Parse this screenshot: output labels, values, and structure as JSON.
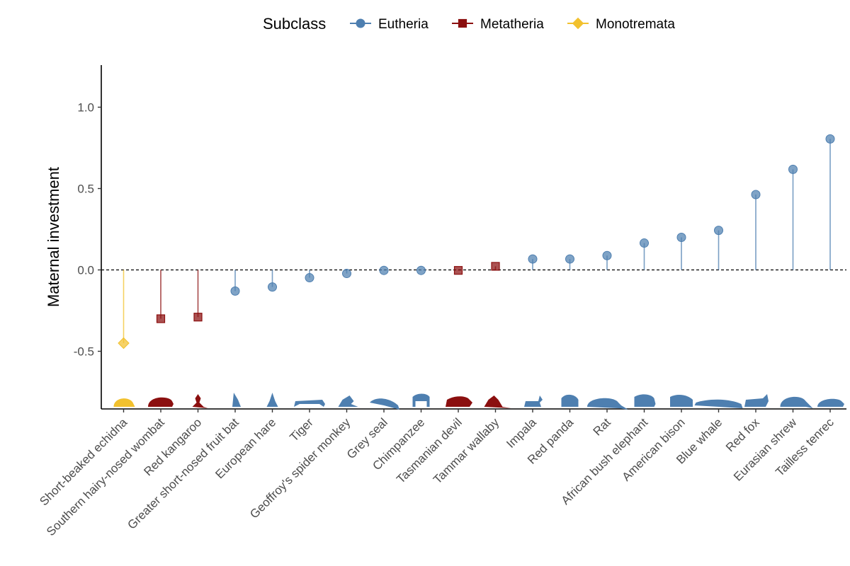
{
  "chart_data": {
    "type": "lollipop",
    "title": "",
    "xlabel": "",
    "ylabel": "Maternal investment",
    "ylim": [
      -0.85,
      1.25
    ],
    "yticks": [
      -0.5,
      0.0,
      0.5,
      1.0
    ],
    "ytick_labels": [
      "-0.5",
      "0.0",
      "0.5",
      "1.0"
    ],
    "reference_line": 0.0,
    "grid": false,
    "legend": {
      "title": "Subclass",
      "position": "top",
      "entries": [
        {
          "name": "Eutheria",
          "color": "#4E7FB0",
          "marker": "circle"
        },
        {
          "name": "Metatheria",
          "color": "#8B0F0F",
          "marker": "square"
        },
        {
          "name": "Monotremata",
          "color": "#F2C12E",
          "marker": "diamond"
        }
      ]
    },
    "categories": [
      "Short-beaked echidna",
      "Southern hairy-nosed wombat",
      "Red kangaroo",
      "Greater short-nosed fruit bat",
      "European hare",
      "Tiger",
      "Geoffroy's spider monkey",
      "Grey seal",
      "Chimpanzee",
      "Tasmanian devil",
      "Tammar wallaby",
      "Impala",
      "Red panda",
      "Rat",
      "African bush elephant",
      "American bison",
      "Blue whale",
      "Red fox",
      "Eurasian shrew",
      "Tailless tenrec"
    ],
    "values": [
      -0.45,
      -0.3,
      -0.29,
      -0.13,
      -0.105,
      -0.048,
      -0.022,
      -0.003,
      -0.003,
      -0.003,
      0.022,
      0.067,
      0.067,
      0.088,
      0.165,
      0.2,
      0.243,
      0.463,
      0.618,
      0.805
    ],
    "subclass": [
      "Monotremata",
      "Metatheria",
      "Metatheria",
      "Eutheria",
      "Eutheria",
      "Eutheria",
      "Eutheria",
      "Eutheria",
      "Eutheria",
      "Metatheria",
      "Metatheria",
      "Eutheria",
      "Eutheria",
      "Eutheria",
      "Eutheria",
      "Eutheria",
      "Eutheria",
      "Eutheria",
      "Eutheria",
      "Eutheria"
    ],
    "silhouettes": [
      "echidna",
      "wombat",
      "kangaroo",
      "bat",
      "hare",
      "tiger",
      "monkey",
      "seal",
      "chimpanzee",
      "devil",
      "wallaby",
      "impala",
      "panda",
      "rat",
      "elephant",
      "bison",
      "whale",
      "fox",
      "shrew",
      "tenrec"
    ]
  }
}
